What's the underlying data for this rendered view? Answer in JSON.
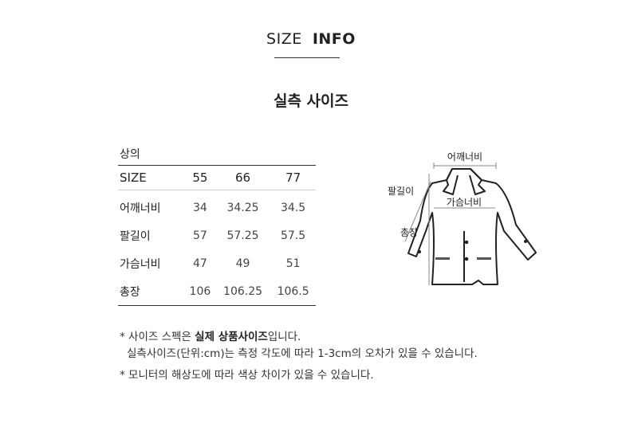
{
  "header": {
    "title_light": "SIZE",
    "title_bold": "INFO",
    "subtitle": "실측 사이즈"
  },
  "table": {
    "category": "상의",
    "columns": [
      "SIZE",
      "55",
      "66",
      "77"
    ],
    "rows": [
      {
        "label": "어깨너비",
        "values": [
          "34",
          "34.25",
          "34.5"
        ]
      },
      {
        "label": "팔길이",
        "values": [
          "57",
          "57.25",
          "57.5"
        ]
      },
      {
        "label": "가슴너비",
        "values": [
          "47",
          "49",
          "51"
        ]
      },
      {
        "label": "총장",
        "values": [
          "106",
          "106.25",
          "106.5"
        ]
      }
    ]
  },
  "diagram": {
    "shoulder": "어깨너비",
    "sleeve": "팔길이",
    "chest": "가슴너비",
    "length": "총장"
  },
  "notes": {
    "line1_prefix": "* 사이즈 스펙은 ",
    "line1_bold": "실제 상품사이즈",
    "line1_suffix": "입니다.",
    "line2": "실측사이즈(단위:cm)는 측정 각도에 따라 1-3cm의 오차가 있을 수 있습니다.",
    "line3": "* 모니터의 해상도에 따라 색상 차이가 있을 수 있습니다."
  }
}
